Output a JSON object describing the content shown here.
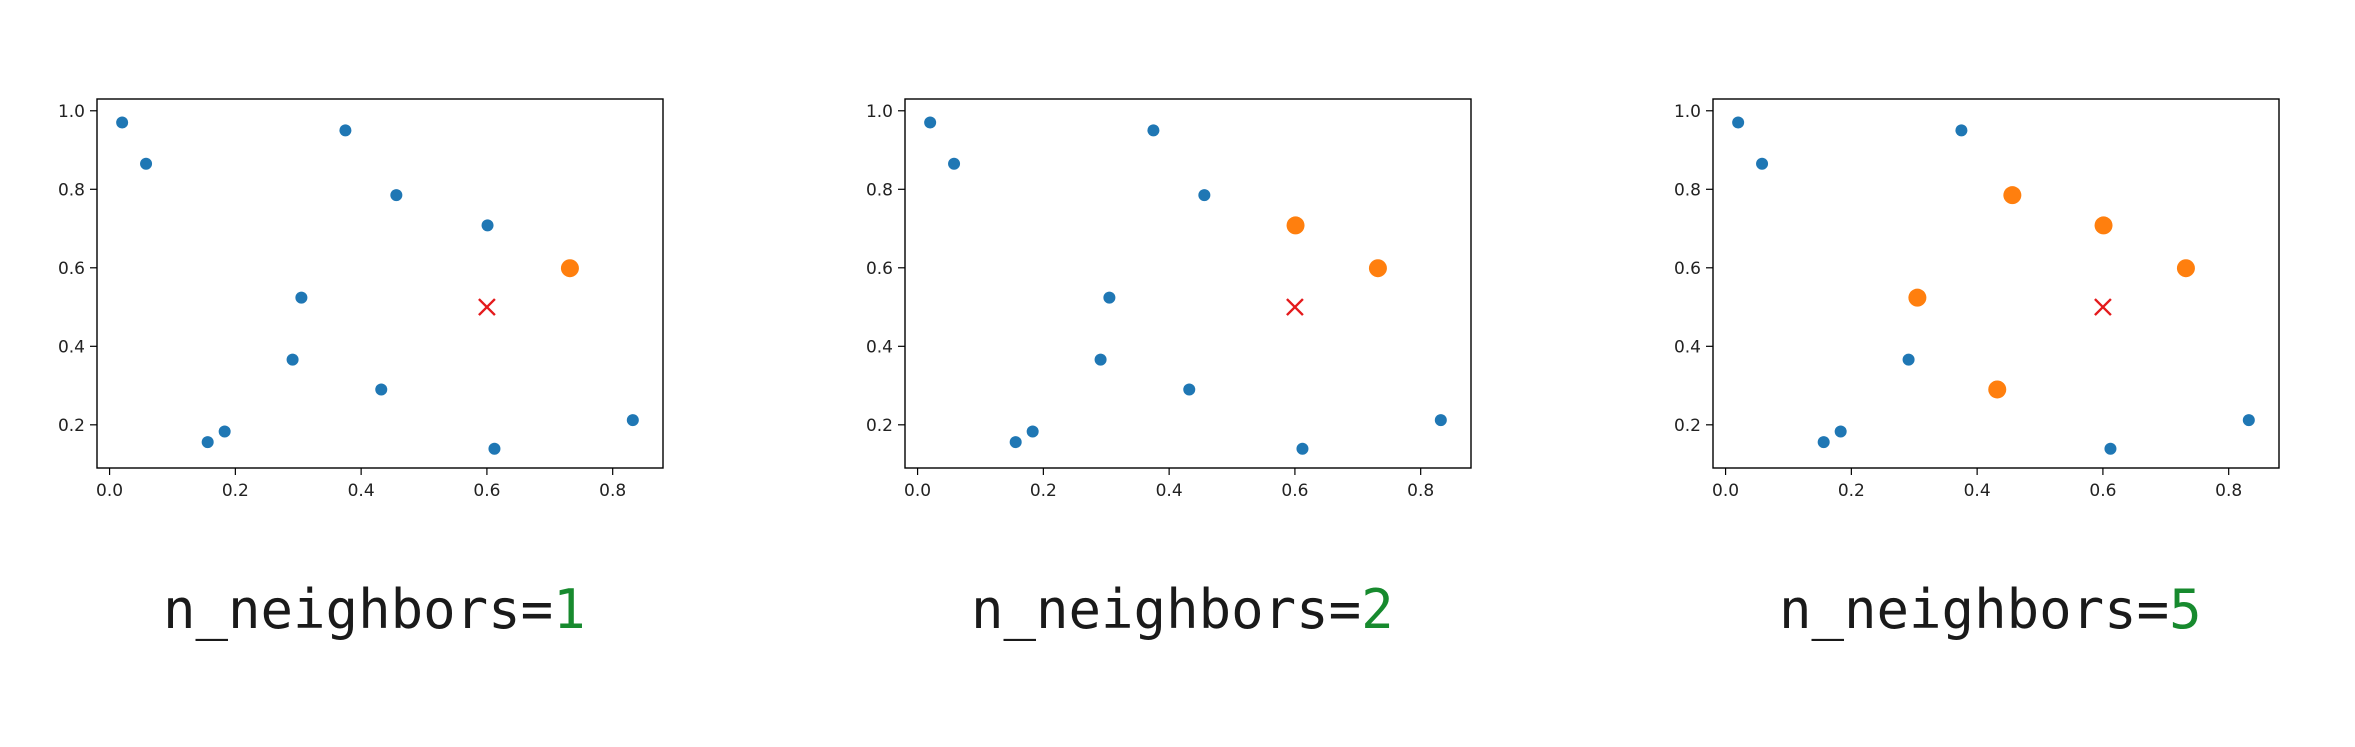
{
  "colors": {
    "point": "#1f77b4",
    "neighbor": "#ff7f0e",
    "query": "#e41a1c",
    "caption_value": "#178a2e"
  },
  "chart_data": [
    {
      "type": "scatter",
      "title": "",
      "xlabel": "",
      "ylabel": "",
      "xlim": [
        -0.02,
        0.88
      ],
      "ylim": [
        0.09,
        1.03
      ],
      "x_ticks": [
        "0.0",
        "0.2",
        "0.4",
        "0.6",
        "0.8"
      ],
      "y_ticks": [
        "0.2",
        "0.4",
        "0.6",
        "0.8",
        "1.0"
      ],
      "grid": false,
      "points": [
        {
          "x": 0.02,
          "y": 0.97
        },
        {
          "x": 0.058,
          "y": 0.865
        },
        {
          "x": 0.375,
          "y": 0.95
        },
        {
          "x": 0.456,
          "y": 0.785
        },
        {
          "x": 0.601,
          "y": 0.708
        },
        {
          "x": 0.305,
          "y": 0.524
        },
        {
          "x": 0.291,
          "y": 0.366
        },
        {
          "x": 0.432,
          "y": 0.29
        },
        {
          "x": 0.156,
          "y": 0.156
        },
        {
          "x": 0.183,
          "y": 0.183
        },
        {
          "x": 0.612,
          "y": 0.139
        },
        {
          "x": 0.832,
          "y": 0.212
        }
      ],
      "neighbors": [
        {
          "x": 0.732,
          "y": 0.599
        }
      ],
      "query": {
        "x": 0.6,
        "y": 0.5
      },
      "caption": {
        "key": "n_neighbors=",
        "value": "1"
      }
    },
    {
      "type": "scatter",
      "title": "",
      "xlabel": "",
      "ylabel": "",
      "xlim": [
        -0.02,
        0.88
      ],
      "ylim": [
        0.09,
        1.03
      ],
      "x_ticks": [
        "0.0",
        "0.2",
        "0.4",
        "0.6",
        "0.8"
      ],
      "y_ticks": [
        "0.2",
        "0.4",
        "0.6",
        "0.8",
        "1.0"
      ],
      "grid": false,
      "points": [
        {
          "x": 0.02,
          "y": 0.97
        },
        {
          "x": 0.058,
          "y": 0.865
        },
        {
          "x": 0.375,
          "y": 0.95
        },
        {
          "x": 0.456,
          "y": 0.785
        },
        {
          "x": 0.305,
          "y": 0.524
        },
        {
          "x": 0.291,
          "y": 0.366
        },
        {
          "x": 0.432,
          "y": 0.29
        },
        {
          "x": 0.156,
          "y": 0.156
        },
        {
          "x": 0.183,
          "y": 0.183
        },
        {
          "x": 0.612,
          "y": 0.139
        },
        {
          "x": 0.832,
          "y": 0.212
        }
      ],
      "neighbors": [
        {
          "x": 0.601,
          "y": 0.708
        },
        {
          "x": 0.732,
          "y": 0.599
        }
      ],
      "query": {
        "x": 0.6,
        "y": 0.5
      },
      "caption": {
        "key": "n_neighbors=",
        "value": "2"
      }
    },
    {
      "type": "scatter",
      "title": "",
      "xlabel": "",
      "ylabel": "",
      "xlim": [
        -0.02,
        0.88
      ],
      "ylim": [
        0.09,
        1.03
      ],
      "x_ticks": [
        "0.0",
        "0.2",
        "0.4",
        "0.6",
        "0.8"
      ],
      "y_ticks": [
        "0.2",
        "0.4",
        "0.6",
        "0.8",
        "1.0"
      ],
      "grid": false,
      "points": [
        {
          "x": 0.02,
          "y": 0.97
        },
        {
          "x": 0.058,
          "y": 0.865
        },
        {
          "x": 0.375,
          "y": 0.95
        },
        {
          "x": 0.291,
          "y": 0.366
        },
        {
          "x": 0.156,
          "y": 0.156
        },
        {
          "x": 0.183,
          "y": 0.183
        },
        {
          "x": 0.612,
          "y": 0.139
        },
        {
          "x": 0.832,
          "y": 0.212
        }
      ],
      "neighbors": [
        {
          "x": 0.456,
          "y": 0.785
        },
        {
          "x": 0.601,
          "y": 0.708
        },
        {
          "x": 0.732,
          "y": 0.599
        },
        {
          "x": 0.305,
          "y": 0.524
        },
        {
          "x": 0.432,
          "y": 0.29
        }
      ],
      "query": {
        "x": 0.6,
        "y": 0.5
      },
      "caption": {
        "key": "n_neighbors=",
        "value": "5"
      }
    }
  ]
}
